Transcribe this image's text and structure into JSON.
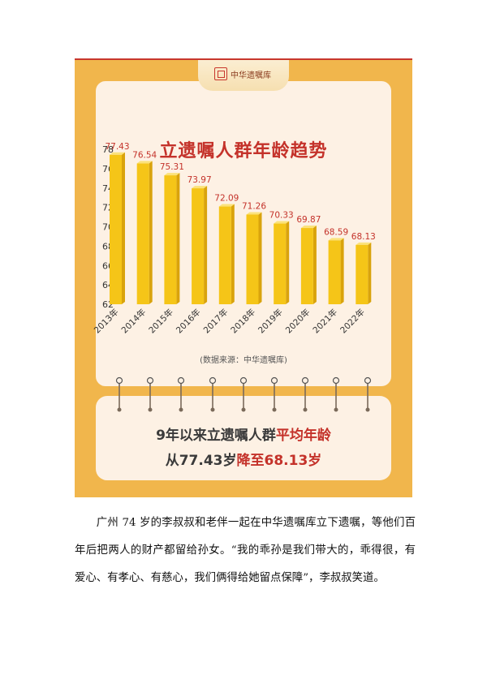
{
  "logo": {
    "text": "中华遗嘱库"
  },
  "chart_data": {
    "type": "bar",
    "title": "立遗嘱人群年龄趋势",
    "categories": [
      "2013年",
      "2014年",
      "2015年",
      "2016年",
      "2017年",
      "2018年",
      "2019年",
      "2020年",
      "2021年",
      "2022年"
    ],
    "values": [
      77.43,
      76.54,
      75.31,
      73.97,
      72.09,
      71.26,
      70.33,
      69.87,
      68.59,
      68.13
    ],
    "value_labels": [
      "77.43",
      "76.54",
      "75.31",
      "73.97",
      "72.09",
      "71.26",
      "70.33",
      "69.87",
      "68.59",
      "68.13"
    ],
    "y_ticks": [
      "62",
      "64",
      "66",
      "68",
      "70",
      "72",
      "74",
      "76",
      "78"
    ],
    "ylim": [
      62,
      78
    ],
    "grid": false,
    "source": "(数据来源：中华遗嘱库)",
    "bar_color": "#f5c518",
    "label_color": "#c4322a"
  },
  "summary": {
    "line1_part1": "9年以来立遗嘱人群",
    "line1_part2": "平均年龄",
    "line2_part1": "从77.43岁",
    "line2_part2": "降至68.13岁"
  },
  "body": {
    "paragraph": "广州 74 岁的李叔叔和老伴一起在中华遗嘱库立下遗嘱，等他们百年后把两人的财产都留给孙女。“我的乖孙是我们带大的，乖得很，有爱心、有孝心、有慈心，我们俩得给她留点保障”，李叔叔笑道。"
  }
}
